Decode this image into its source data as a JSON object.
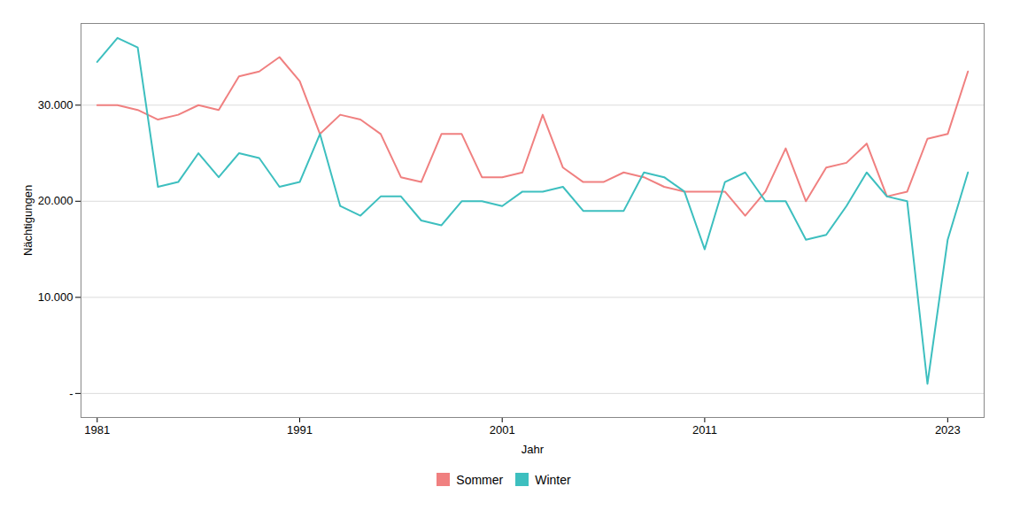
{
  "chart_data": {
    "type": "line",
    "xlabel": "Jahr",
    "ylabel": "Nächtigungen",
    "x": [
      1981,
      1982,
      1983,
      1984,
      1985,
      1986,
      1987,
      1988,
      1989,
      1990,
      1991,
      1992,
      1993,
      1994,
      1995,
      1996,
      1997,
      1998,
      1999,
      2000,
      2001,
      2002,
      2003,
      2004,
      2005,
      2006,
      2007,
      2008,
      2009,
      2010,
      2011,
      2012,
      2013,
      2014,
      2015,
      2016,
      2017,
      2018,
      2019,
      2020,
      2021,
      2022,
      2023,
      2024
    ],
    "series": [
      {
        "name": "Sommer",
        "color": "#F08080",
        "values": [
          30000,
          30000,
          29500,
          28500,
          29000,
          30000,
          29500,
          33000,
          33500,
          35000,
          32500,
          27000,
          29000,
          28500,
          27000,
          22500,
          22000,
          27000,
          27000,
          22500,
          22500,
          23000,
          29000,
          23500,
          22000,
          22000,
          23000,
          22500,
          21500,
          21000,
          21000,
          21000,
          18500,
          21000,
          25500,
          20000,
          23500,
          24000,
          26000,
          20500,
          21000,
          26500,
          27000,
          33500
        ]
      },
      {
        "name": "Winter",
        "color": "#3DBFBF",
        "values": [
          34500,
          37000,
          36000,
          21500,
          22000,
          25000,
          22500,
          25000,
          24500,
          21500,
          22000,
          27000,
          19500,
          18500,
          20500,
          20500,
          18000,
          17500,
          20000,
          20000,
          19500,
          21000,
          21000,
          21500,
          19000,
          19000,
          19000,
          23000,
          22500,
          21000,
          15000,
          22000,
          23000,
          20000,
          20000,
          16000,
          16500,
          19500,
          23000,
          20500,
          20000,
          1000,
          16000,
          23000
        ]
      }
    ],
    "xlim": [
      1980.2,
      2024.8
    ],
    "ylim": [
      -2500,
      38500
    ],
    "xticks": [
      1981,
      1991,
      2001,
      2011,
      2023
    ],
    "yticks": [
      {
        "value": 0,
        "label": "-"
      },
      {
        "value": 10000,
        "label": "10.000"
      },
      {
        "value": 20000,
        "label": "20.000"
      },
      {
        "value": 30000,
        "label": "30.000"
      }
    ],
    "grid": true,
    "legend": "bottom"
  }
}
